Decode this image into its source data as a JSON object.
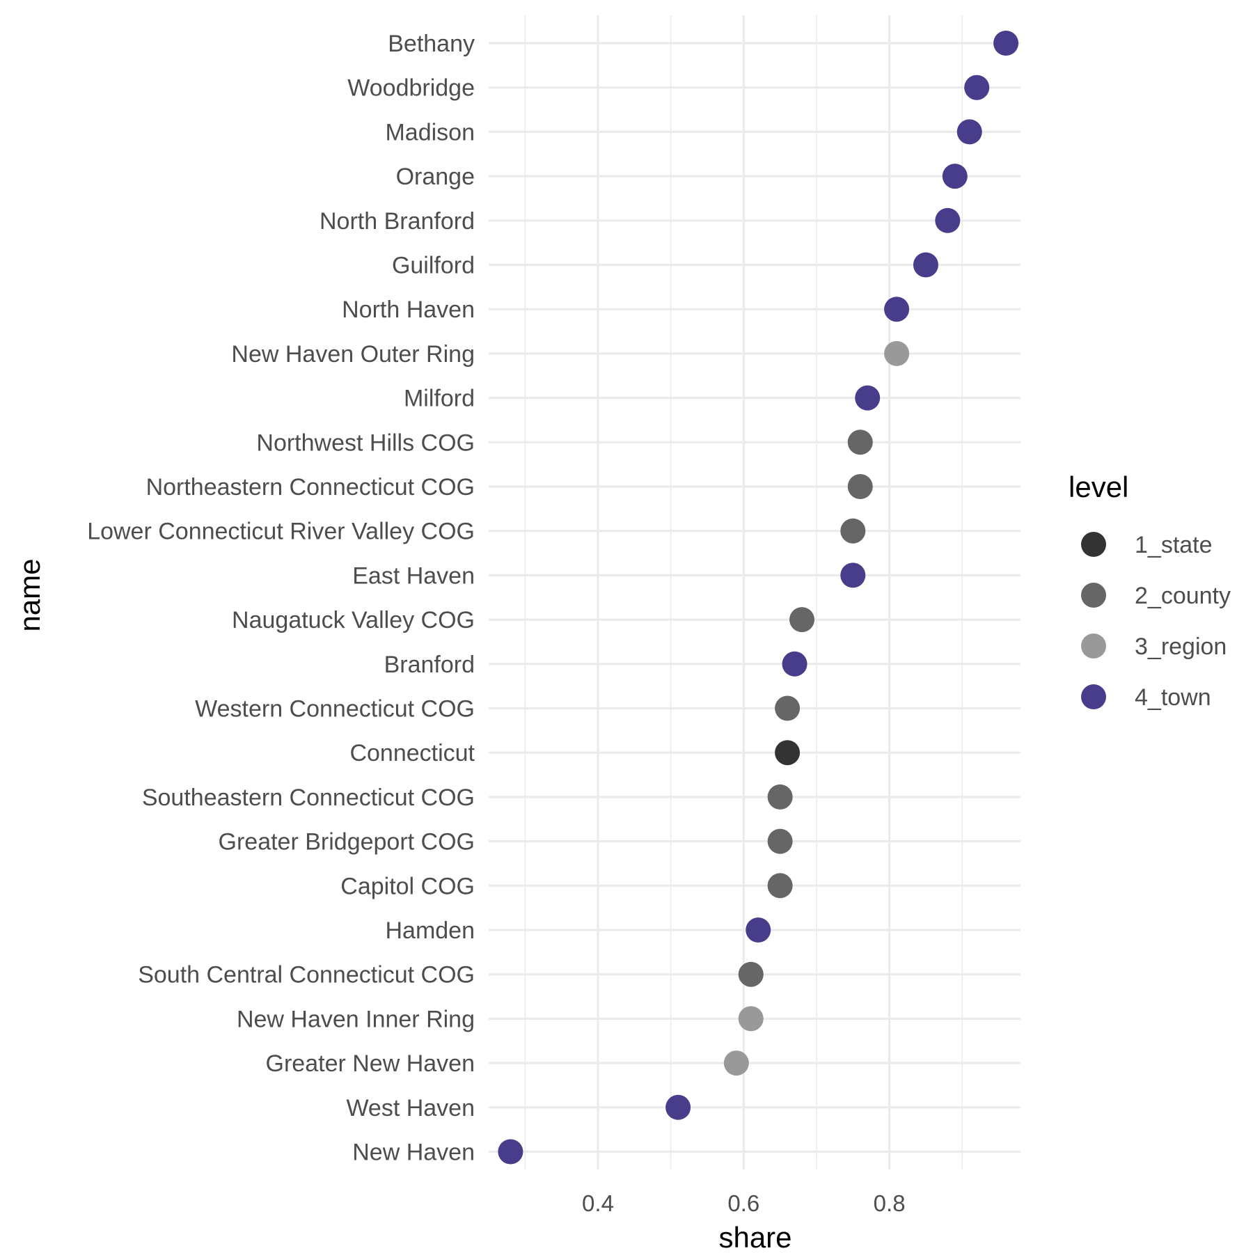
{
  "chart_data": {
    "type": "scatter",
    "xlabel": "share",
    "ylabel": "name",
    "xlim": [
      0.25,
      0.98
    ],
    "x_ticks": [
      0.4,
      0.6,
      0.8
    ],
    "x_tick_labels": [
      "0.4",
      "0.6",
      "0.8"
    ],
    "grid": true,
    "legend": {
      "title": "level",
      "placement": "right",
      "entries": [
        {
          "label": "1_state",
          "color": "#333333"
        },
        {
          "label": "2_county",
          "color": "#666666"
        },
        {
          "label": "3_region",
          "color": "#999999"
        },
        {
          "label": "4_town",
          "color": "#483d8b"
        }
      ]
    },
    "points": [
      {
        "name": "Bethany",
        "share": 0.96,
        "level": "4_town"
      },
      {
        "name": "Woodbridge",
        "share": 0.92,
        "level": "4_town"
      },
      {
        "name": "Madison",
        "share": 0.91,
        "level": "4_town"
      },
      {
        "name": "Orange",
        "share": 0.89,
        "level": "4_town"
      },
      {
        "name": "North Branford",
        "share": 0.88,
        "level": "4_town"
      },
      {
        "name": "Guilford",
        "share": 0.85,
        "level": "4_town"
      },
      {
        "name": "North Haven",
        "share": 0.81,
        "level": "4_town"
      },
      {
        "name": "New Haven Outer Ring",
        "share": 0.81,
        "level": "3_region"
      },
      {
        "name": "Milford",
        "share": 0.77,
        "level": "4_town"
      },
      {
        "name": "Northwest Hills COG",
        "share": 0.76,
        "level": "2_county"
      },
      {
        "name": "Northeastern Connecticut COG",
        "share": 0.76,
        "level": "2_county"
      },
      {
        "name": "Lower Connecticut River Valley COG",
        "share": 0.75,
        "level": "2_county"
      },
      {
        "name": "East Haven",
        "share": 0.75,
        "level": "4_town"
      },
      {
        "name": "Naugatuck Valley COG",
        "share": 0.68,
        "level": "2_county"
      },
      {
        "name": "Branford",
        "share": 0.67,
        "level": "4_town"
      },
      {
        "name": "Western Connecticut COG",
        "share": 0.66,
        "level": "2_county"
      },
      {
        "name": "Connecticut",
        "share": 0.66,
        "level": "1_state"
      },
      {
        "name": "Southeastern Connecticut COG",
        "share": 0.65,
        "level": "2_county"
      },
      {
        "name": "Greater Bridgeport COG",
        "share": 0.65,
        "level": "2_county"
      },
      {
        "name": "Capitol COG",
        "share": 0.65,
        "level": "2_county"
      },
      {
        "name": "Hamden",
        "share": 0.62,
        "level": "4_town"
      },
      {
        "name": "South Central Connecticut COG",
        "share": 0.61,
        "level": "2_county"
      },
      {
        "name": "New Haven Inner Ring",
        "share": 0.61,
        "level": "3_region"
      },
      {
        "name": "Greater New Haven",
        "share": 0.59,
        "level": "3_region"
      },
      {
        "name": "West Haven",
        "share": 0.51,
        "level": "4_town"
      },
      {
        "name": "New Haven",
        "share": 0.28,
        "level": "4_town"
      }
    ]
  }
}
